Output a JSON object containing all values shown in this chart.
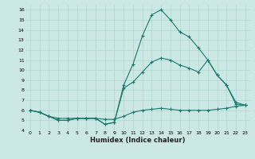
{
  "title": "",
  "xlabel": "Humidex (Indice chaleur)",
  "bg_color": "#cce8e4",
  "grid_color": "#b0d4d0",
  "line_color": "#1a7a6e",
  "xlim": [
    -0.5,
    23.5
  ],
  "ylim": [
    4,
    16.5
  ],
  "xticks": [
    0,
    1,
    2,
    3,
    4,
    5,
    6,
    7,
    8,
    9,
    10,
    11,
    12,
    13,
    14,
    15,
    16,
    17,
    18,
    19,
    20,
    21,
    22,
    23
  ],
  "yticks": [
    4,
    5,
    6,
    7,
    8,
    9,
    10,
    11,
    12,
    13,
    14,
    15,
    16
  ],
  "series": [
    {
      "x": [
        0,
        1,
        2,
        3,
        4,
        5,
        6,
        7,
        8,
        9,
        10,
        11,
        12,
        13,
        14,
        15,
        16,
        17,
        18,
        19,
        20,
        21,
        22,
        23
      ],
      "y": [
        6.0,
        5.8,
        5.4,
        5.0,
        5.0,
        5.2,
        5.2,
        5.2,
        4.6,
        4.8,
        8.5,
        10.6,
        13.4,
        15.5,
        16.0,
        15.0,
        13.8,
        13.3,
        12.2,
        11.0,
        9.5,
        8.5,
        6.6,
        6.5
      ]
    },
    {
      "x": [
        0,
        1,
        2,
        3,
        4,
        5,
        6,
        7,
        8,
        9,
        10,
        11,
        12,
        13,
        14,
        15,
        16,
        17,
        18,
        19,
        20,
        21,
        22,
        23
      ],
      "y": [
        6.0,
        5.8,
        5.4,
        5.0,
        5.0,
        5.2,
        5.2,
        5.2,
        4.6,
        4.8,
        8.2,
        8.8,
        9.8,
        10.8,
        11.2,
        11.0,
        10.5,
        10.2,
        9.8,
        11.0,
        9.5,
        8.5,
        6.8,
        6.5
      ]
    },
    {
      "x": [
        0,
        1,
        2,
        3,
        4,
        5,
        6,
        7,
        8,
        9,
        10,
        11,
        12,
        13,
        14,
        15,
        16,
        17,
        18,
        19,
        20,
        21,
        22,
        23
      ],
      "y": [
        6.0,
        5.8,
        5.4,
        5.2,
        5.2,
        5.2,
        5.2,
        5.2,
        5.1,
        5.1,
        5.4,
        5.8,
        6.0,
        6.1,
        6.2,
        6.1,
        6.0,
        6.0,
        6.0,
        6.0,
        6.1,
        6.2,
        6.4,
        6.5
      ]
    }
  ],
  "xlabel_fontsize": 6.0,
  "tick_fontsize": 4.5,
  "linewidth": 0.8,
  "markersize": 3.0
}
